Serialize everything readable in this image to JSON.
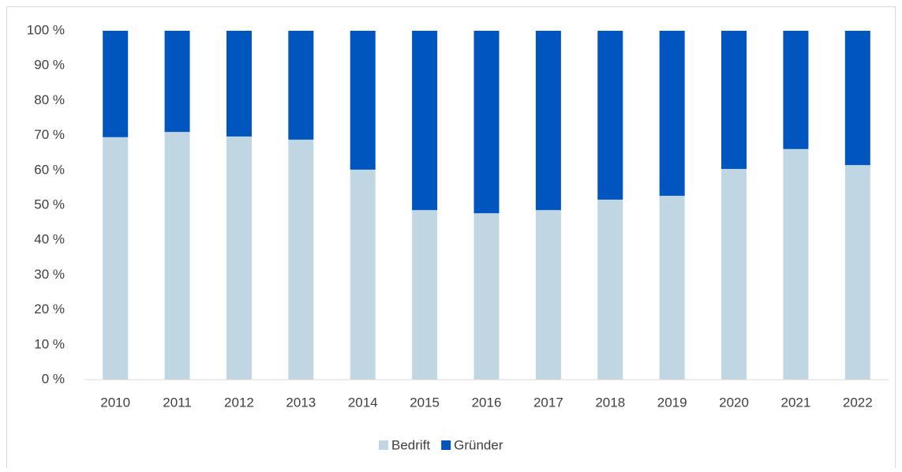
{
  "chart_data": {
    "type": "stacked_bar",
    "categories": [
      "2010",
      "2011",
      "2012",
      "2013",
      "2014",
      "2015",
      "2016",
      "2017",
      "2018",
      "2019",
      "2020",
      "2021",
      "2022"
    ],
    "series": [
      {
        "name": "Bedrift",
        "color": "#c0d6e2",
        "values": [
          69.5,
          71.0,
          69.7,
          68.8,
          60.2,
          48.6,
          47.7,
          48.6,
          51.6,
          52.7,
          60.4,
          66.1,
          61.5
        ]
      },
      {
        "name": "Gründer",
        "color": "#0055bf",
        "values": [
          30.5,
          29.0,
          30.3,
          31.2,
          39.8,
          51.4,
          52.3,
          51.4,
          48.4,
          47.3,
          39.6,
          33.9,
          38.5
        ]
      }
    ],
    "ylim": [
      0,
      100
    ],
    "yticks": [
      {
        "value": 0,
        "label": "0 %"
      },
      {
        "value": 10,
        "label": "10 %"
      },
      {
        "value": 20,
        "label": "20 %"
      },
      {
        "value": 30,
        "label": "30 %"
      },
      {
        "value": 40,
        "label": "40 %"
      },
      {
        "value": 50,
        "label": "50 %"
      },
      {
        "value": 60,
        "label": "60 %"
      },
      {
        "value": 70,
        "label": "70 %"
      },
      {
        "value": 80,
        "label": "80 %"
      },
      {
        "value": 90,
        "label": "90 %"
      },
      {
        "value": 100,
        "label": "100 %"
      }
    ],
    "grid": false,
    "legend": "bottom"
  }
}
